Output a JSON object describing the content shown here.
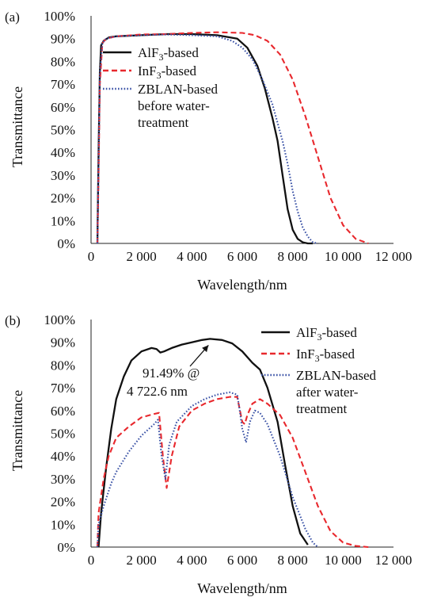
{
  "colors": {
    "alf3": "#111111",
    "inf3": "#e8282d",
    "zblan": "#3a52a6"
  },
  "chart_data": [
    {
      "type": "line",
      "panel_label": "(a)",
      "xlabel": "Wavelength/nm",
      "ylabel": "Transmittance",
      "xlim": [
        0,
        12000
      ],
      "ylim": [
        0,
        100
      ],
      "x_ticks": [
        0,
        2000,
        4000,
        6000,
        8000,
        10000,
        12000
      ],
      "x_tick_labels": [
        "0",
        "2 000",
        "4 000",
        "6 000",
        "8 000",
        "10 000",
        "12 000"
      ],
      "y_ticks": [
        0,
        10,
        20,
        30,
        40,
        50,
        60,
        70,
        80,
        90,
        100
      ],
      "y_tick_labels": [
        "0%",
        "10%",
        "20%",
        "30%",
        "40%",
        "50%",
        "60%",
        "70%",
        "80%",
        "90%",
        "100%"
      ],
      "legend_position": "top-right",
      "series": [
        {
          "name": "AlF3-based",
          "legend_lines": [
            "AlF",
            "3",
            "-based"
          ],
          "color": "alf3",
          "dash": "solid",
          "x": [
            250,
            300,
            350,
            400,
            500,
            700,
            1000,
            2000,
            3000,
            4000,
            5000,
            5800,
            6200,
            6600,
            6900,
            7200,
            7400,
            7600,
            7800,
            8000,
            8200,
            8400,
            8600,
            8800
          ],
          "y": [
            0,
            40,
            75,
            87,
            89,
            90.5,
            91,
            91.5,
            92,
            92,
            91.5,
            90,
            86,
            78,
            68,
            55,
            45,
            30,
            15,
            6,
            2,
            0.5,
            0,
            0
          ]
        },
        {
          "name": "InF3-based",
          "legend_lines": [
            "InF",
            "3",
            "-based"
          ],
          "color": "inf3",
          "dash": "dashed",
          "x": [
            250,
            300,
            350,
            450,
            600,
            1000,
            2000,
            3000,
            4000,
            5000,
            6000,
            6500,
            7000,
            7500,
            8000,
            8500,
            9000,
            9500,
            10000,
            10500,
            11000
          ],
          "y": [
            0,
            30,
            70,
            88,
            90,
            91,
            91.8,
            92,
            92.5,
            92.8,
            92.5,
            91.5,
            89,
            83,
            72,
            56,
            38,
            20,
            8,
            2,
            0
          ]
        },
        {
          "name": "ZBLAN-based",
          "legend_lines": [
            "ZBLAN-based",
            "before water-",
            "treatment"
          ],
          "color": "zblan",
          "dash": "dotted",
          "x": [
            250,
            300,
            350,
            450,
            600,
            1000,
            2000,
            3000,
            4000,
            5000,
            5600,
            6000,
            6400,
            6800,
            7200,
            7600,
            7800,
            8000,
            8200,
            8400,
            8600,
            8800,
            9000
          ],
          "y": [
            0,
            35,
            75,
            88,
            90,
            91,
            91.5,
            91.8,
            91.5,
            91,
            89,
            86,
            81,
            72,
            61,
            45,
            35,
            23,
            14,
            7,
            3,
            0.5,
            0
          ]
        }
      ]
    },
    {
      "type": "line",
      "panel_label": "(b)",
      "xlabel": "Wavelength/nm",
      "ylabel": "Transmittance",
      "xlim": [
        0,
        12000
      ],
      "ylim": [
        0,
        100
      ],
      "x_ticks": [
        0,
        2000,
        4000,
        6000,
        8000,
        10000,
        12000
      ],
      "x_tick_labels": [
        "0",
        "2 000",
        "4 000",
        "6 000",
        "8 000",
        "10 000",
        "12 000"
      ],
      "y_ticks": [
        0,
        10,
        20,
        30,
        40,
        50,
        60,
        70,
        80,
        90,
        100
      ],
      "y_tick_labels": [
        "0%",
        "10%",
        "20%",
        "30%",
        "40%",
        "50%",
        "60%",
        "70%",
        "80%",
        "90%",
        "100%"
      ],
      "legend_position": "top-right",
      "annotation": {
        "lines": [
          "91.49% @",
          "4 722.6 nm"
        ],
        "x": 4722.6,
        "y": 91.49
      },
      "series": [
        {
          "name": "AlF3-based",
          "legend_lines": [
            "AlF",
            "3",
            "-based"
          ],
          "color": "alf3",
          "dash": "solid",
          "x": [
            300,
            400,
            600,
            800,
            1000,
            1300,
            1600,
            2000,
            2400,
            2600,
            2750,
            2900,
            3200,
            3600,
            4000,
            4400,
            4722.6,
            5200,
            5600,
            6000,
            6400,
            6700,
            7000,
            7400,
            7700,
            8000,
            8300,
            8600
          ],
          "y": [
            0,
            15,
            35,
            52,
            65,
            75,
            82,
            86,
            87.5,
            87,
            85.5,
            86,
            87.5,
            89,
            90,
            91,
            91.49,
            91,
            89.5,
            86,
            81,
            78,
            70,
            55,
            36,
            18,
            6,
            1
          ]
        },
        {
          "name": "InF3-based",
          "legend_lines": [
            "InF",
            "3",
            "-based"
          ],
          "color": "inf3",
          "dash": "dashed",
          "x": [
            250,
            300,
            500,
            700,
            1000,
            1500,
            2000,
            2500,
            2700,
            2850,
            3000,
            3200,
            3500,
            4000,
            4500,
            5000,
            5500,
            5800,
            6000,
            6100,
            6200,
            6400,
            6700,
            7000,
            7500,
            8000,
            8500,
            9000,
            9500,
            10000,
            10500,
            11000
          ],
          "y": [
            0,
            15,
            30,
            40,
            48,
            53,
            57,
            58.5,
            59,
            40,
            26,
            40,
            53,
            60,
            63,
            65,
            66,
            66,
            55,
            54,
            58,
            63,
            65,
            63,
            58,
            48,
            33,
            18,
            7,
            2,
            0.5,
            0
          ]
        },
        {
          "name": "ZBLAN-based",
          "legend_lines": [
            "ZBLAN-based",
            "after water-",
            "treatment"
          ],
          "color": "zblan",
          "dash": "dotted",
          "x": [
            250,
            300,
            500,
            800,
            1000,
            1500,
            2000,
            2500,
            2650,
            2800,
            2950,
            3100,
            3400,
            4000,
            4500,
            5000,
            5500,
            5800,
            5900,
            6000,
            6150,
            6300,
            6500,
            6700,
            7000,
            7500,
            8000,
            8500,
            8800,
            9000
          ],
          "y": [
            0,
            10,
            18,
            28,
            33,
            42,
            49,
            54,
            56,
            40,
            30,
            45,
            55,
            62,
            65,
            67,
            68,
            67,
            60,
            52,
            46,
            55,
            60,
            59,
            54,
            40,
            22,
            8,
            2,
            0
          ]
        }
      ]
    }
  ]
}
